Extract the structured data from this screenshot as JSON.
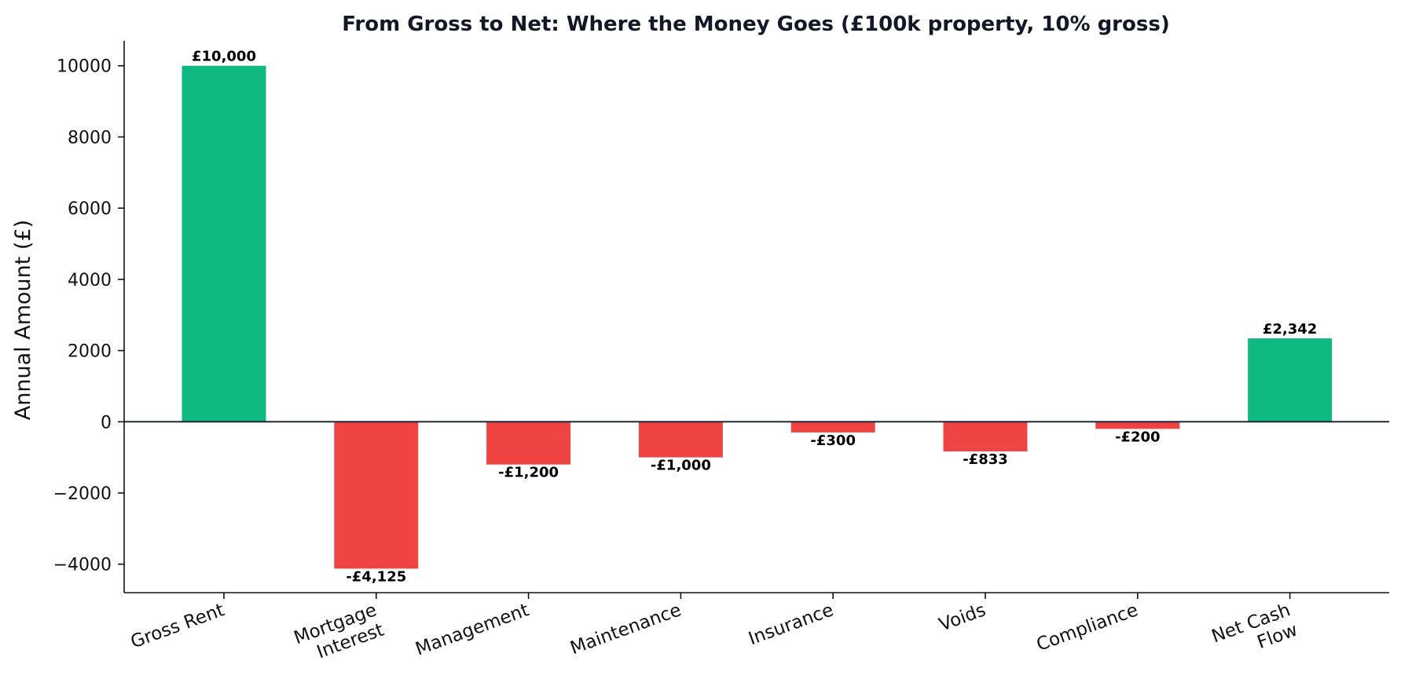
{
  "chart_data": {
    "type": "bar",
    "title": "From Gross to Net: Where the Money Goes (£100k property, 10% gross)",
    "xlabel": "",
    "ylabel": "Annual Amount (£)",
    "categories": [
      "Gross Rent",
      "Mortgage\nInterest",
      "Management",
      "Maintenance",
      "Insurance",
      "Voids",
      "Compliance",
      "Net Cash\nFlow"
    ],
    "values": [
      10000,
      -4125,
      -1200,
      -1000,
      -300,
      -833,
      -200,
      2342
    ],
    "data_labels": [
      "£10,000",
      "-£4,125",
      "-£1,200",
      "-£1,000",
      "-£300",
      "-£833",
      "-£200",
      "£2,342"
    ],
    "ylim": [
      -4800,
      10700
    ],
    "yticks": [
      10000,
      8000,
      6000,
      4000,
      2000,
      0,
      -2000,
      -4000
    ],
    "ytick_labels": [
      "10000",
      "8000",
      "6000",
      "4000",
      "2000",
      "0",
      "−2000",
      "−4000"
    ],
    "grid": false,
    "legend": "none",
    "colors": {
      "positive": "#10b981",
      "negative": "#ef4444",
      "zero_line": "#1f2937",
      "axis": "#111111"
    }
  }
}
